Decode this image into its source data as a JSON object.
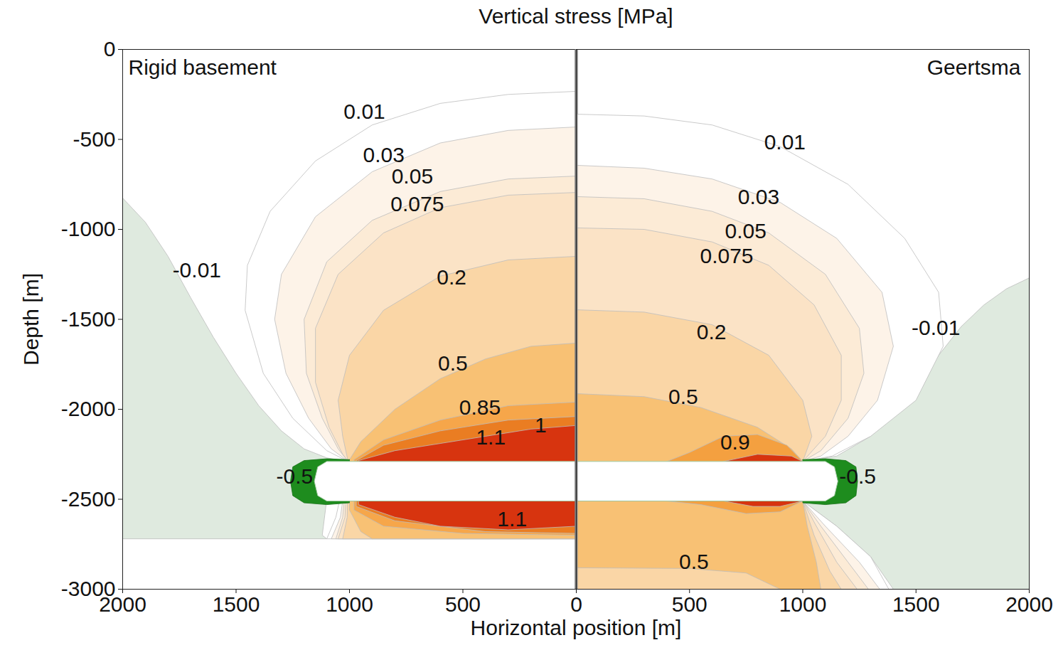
{
  "chart_data": [
    {
      "type": "contour",
      "title": "Vertical stress [MPa]",
      "xlabel": "Horizontal position [m]",
      "ylabel": "Depth [m]",
      "panel_title": "Rigid basement",
      "xlim": [
        2000,
        0
      ],
      "xticks": [
        2000,
        1500,
        1000,
        500,
        0
      ],
      "ylim": [
        -3000,
        0
      ],
      "yticks": [
        0,
        -500,
        -1000,
        -1500,
        -2000,
        -2500,
        -3000
      ],
      "regions": [
        {
          "level": -0.01,
          "color": "#dfeadf",
          "x": [
            2000,
            1900,
            1800,
            1700,
            1600,
            1500,
            1400,
            1300,
            1200,
            1100,
            1010,
            1100,
            1120,
            1100,
            2000
          ],
          "y": [
            -826,
            -960,
            -1150,
            -1380,
            -1600,
            -1800,
            -1980,
            -2120,
            -2220,
            -2270,
            -2290,
            -2500,
            -2700,
            -2720,
            -2720
          ]
        },
        {
          "level": 0.01,
          "color": "#ffffff",
          "x": [
            0,
            300,
            600,
            900,
            1150,
            1350,
            1450,
            1460,
            1380,
            1250,
            1100,
            1006,
            1060,
            1100,
            0
          ],
          "y": [
            -233,
            -250,
            -300,
            -420,
            -620,
            -900,
            -1200,
            -1450,
            -1800,
            -2050,
            -2230,
            -2290,
            -2600,
            -2720,
            -2720
          ]
        },
        {
          "level": 0.03,
          "color": "#fdf3e8",
          "x": [
            0,
            300,
            600,
            900,
            1150,
            1300,
            1330,
            1280,
            1180,
            1080,
            1006,
            1040,
            1080,
            0
          ],
          "y": [
            -431,
            -450,
            -520,
            -680,
            -930,
            -1250,
            -1500,
            -1800,
            -2050,
            -2220,
            -2290,
            -2600,
            -2720,
            -2720
          ]
        },
        {
          "level": 0.05,
          "color": "#fcebd6",
          "x": [
            0,
            300,
            600,
            900,
            1100,
            1200,
            1190,
            1120,
            1050,
            1006,
            1030,
            1060,
            0
          ],
          "y": [
            -704,
            -720,
            -790,
            -950,
            -1180,
            -1500,
            -1800,
            -2050,
            -2220,
            -2290,
            -2600,
            -2720,
            -2720
          ]
        },
        {
          "level": 0.075,
          "color": "#fbe3c6",
          "x": [
            0,
            300,
            600,
            850,
            1050,
            1150,
            1150,
            1090,
            1030,
            1006,
            1020,
            1050,
            0
          ],
          "y": [
            -795,
            -810,
            -880,
            -1020,
            -1250,
            -1550,
            -1850,
            -2100,
            -2250,
            -2290,
            -2600,
            -2720,
            -2720
          ]
        },
        {
          "level": 0.2,
          "color": "#fad6a6",
          "x": [
            0,
            300,
            600,
            850,
            1000,
            1050,
            1030,
            1006,
            1010,
            1030,
            0
          ],
          "y": [
            -1150,
            -1170,
            -1260,
            -1450,
            -1700,
            -1950,
            -2150,
            -2290,
            -2600,
            -2720,
            -2720
          ]
        },
        {
          "level": 0.5,
          "color": "#f8c174",
          "x": [
            0,
            200,
            400,
            600,
            800,
            950,
            1000,
            1000,
            950,
            900,
            0
          ],
          "y": [
            -1632,
            -1650,
            -1720,
            -1830,
            -2000,
            -2180,
            -2280,
            -2560,
            -2680,
            -2720,
            -2720
          ]
        },
        {
          "level": 0.85,
          "color": "#f6a64a",
          "x": [
            0,
            300,
            600,
            850,
            980,
            980,
            850,
            500,
            0
          ],
          "y": [
            -1960,
            -1980,
            -2060,
            -2170,
            -2280,
            -2560,
            -2650,
            -2690,
            -2700
          ]
        },
        {
          "level": 1,
          "color": "#ea7d22",
          "x": [
            0,
            300,
            600,
            850,
            970,
            970,
            800,
            400,
            0
          ],
          "y": [
            -2040,
            -2060,
            -2120,
            -2200,
            -2285,
            -2540,
            -2620,
            -2680,
            -2690
          ]
        },
        {
          "level": 1.1,
          "color": "#d7340f",
          "x": [
            0,
            200,
            400,
            600,
            800,
            960,
            960,
            800,
            600,
            300,
            0
          ],
          "y": [
            -2090,
            -2110,
            -2150,
            -2190,
            -2230,
            -2285,
            -2530,
            -2600,
            -2650,
            -2670,
            -2650
          ]
        },
        {
          "level": -0.5,
          "color": "#1e8c1e",
          "x": [
            1000,
            1100,
            1200,
            1250,
            1260,
            1250,
            1200,
            1100,
            1000
          ],
          "y": [
            -2280,
            -2275,
            -2285,
            -2320,
            -2400,
            -2480,
            -2520,
            -2530,
            -2520
          ]
        }
      ],
      "reservoir": {
        "x": [
          0,
          1100,
          1140,
          1155,
          1140,
          1100,
          0
        ],
        "y": [
          -2290,
          -2290,
          -2320,
          -2400,
          -2480,
          -2510,
          -2510
        ]
      },
      "labels": [
        {
          "value": 0.01,
          "x": 934,
          "y": -348
        },
        {
          "value": 0.03,
          "x": 849,
          "y": -589
        },
        {
          "value": 0.05,
          "x": 723,
          "y": -707
        },
        {
          "value": 0.075,
          "x": 701,
          "y": -862
        },
        {
          "value": -0.01,
          "x": 1673,
          "y": -1229
        },
        {
          "value": 0.2,
          "x": 550,
          "y": -1269
        },
        {
          "value": 0.5,
          "x": 544,
          "y": -1747
        },
        {
          "value": 0.85,
          "x": 425,
          "y": -1992
        },
        {
          "value": 1,
          "x": 157,
          "y": -2091
        },
        {
          "value": 1.1,
          "x": 377,
          "y": -2158
        },
        {
          "value": -0.5,
          "x": 1242,
          "y": -2375
        },
        {
          "value": 1.1,
          "x": 283,
          "y": -2613
        }
      ]
    },
    {
      "type": "contour",
      "panel_title": "Geertsma",
      "xlim": [
        0,
        2000
      ],
      "xticks": [
        500,
        1000,
        1500,
        2000
      ],
      "ylim": [
        -3000,
        0
      ],
      "yticks": [
        0,
        -500,
        -1000,
        -1500,
        -2000,
        -2500,
        -3000
      ],
      "tick_labels": "x",
      "regions": [
        {
          "level": -0.01,
          "color": "#dfeadf",
          "x": [
            2000,
            1900,
            1800,
            1700,
            1600,
            1500,
            1400,
            1300,
            1150,
            1000,
            1000,
            1150,
            1300,
            1400,
            2000
          ],
          "y": [
            -1270,
            -1330,
            -1420,
            -1540,
            -1700,
            -1880,
            -2030,
            -2150,
            -2260,
            -2290,
            -2510,
            -2650,
            -2820,
            -3000,
            -3000
          ]
        },
        {
          "level": 0.01,
          "color": "#ffffff",
          "x": [
            0,
            300,
            600,
            900,
            1200,
            1450,
            1600,
            1620,
            1500,
            1300,
            1130,
            1000,
            1000,
            1150,
            1300,
            1380,
            0
          ],
          "y": [
            -360,
            -370,
            -420,
            -540,
            -750,
            -1050,
            -1350,
            -1650,
            -1950,
            -2150,
            -2260,
            -2290,
            -2510,
            -2650,
            -2820,
            -3000,
            -3000
          ]
        },
        {
          "level": 0.03,
          "color": "#fdf3e8",
          "x": [
            0,
            300,
            600,
            900,
            1150,
            1350,
            1400,
            1330,
            1200,
            1080,
            1000,
            1000,
            1100,
            1250,
            1340,
            0
          ],
          "y": [
            -644,
            -660,
            -720,
            -850,
            -1050,
            -1350,
            -1650,
            -1950,
            -2150,
            -2260,
            -2290,
            -2510,
            -2650,
            -2850,
            -3000,
            -3000
          ]
        },
        {
          "level": 0.05,
          "color": "#fcebd6",
          "x": [
            0,
            300,
            600,
            850,
            1100,
            1250,
            1270,
            1200,
            1080,
            1000,
            1000,
            1080,
            1200,
            1290,
            0
          ],
          "y": [
            -818,
            -830,
            -900,
            -1020,
            -1250,
            -1550,
            -1800,
            -2050,
            -2230,
            -2290,
            -2510,
            -2650,
            -2850,
            -3000,
            -3000
          ]
        },
        {
          "level": 0.075,
          "color": "#fbe3c6",
          "x": [
            0,
            300,
            600,
            850,
            1050,
            1170,
            1170,
            1100,
            1000,
            1000,
            1060,
            1150,
            1240,
            0
          ],
          "y": [
            -992,
            -1000,
            -1070,
            -1200,
            -1420,
            -1700,
            -1950,
            -2150,
            -2290,
            -2510,
            -2650,
            -2850,
            -3000,
            -3000
          ]
        },
        {
          "level": 0.2,
          "color": "#fad6a6",
          "x": [
            0,
            300,
            600,
            850,
            1000,
            1040,
            1000,
            1000,
            1050,
            1120,
            1170,
            0
          ],
          "y": [
            -1447,
            -1460,
            -1530,
            -1700,
            -1950,
            -2150,
            -2290,
            -2510,
            -2700,
            -2900,
            -3000,
            -3000
          ]
        },
        {
          "level": 0.5,
          "color": "#f8c174",
          "x": [
            0,
            300,
            550,
            800,
            950,
            1000,
            1000,
            1020,
            1060,
            1080,
            900,
            750,
            500,
            0
          ],
          "y": [
            -1913,
            -1930,
            -1990,
            -2100,
            -2220,
            -2290,
            -2510,
            -2650,
            -2850,
            -3000,
            -3000,
            -2910,
            -2885,
            -2881
          ]
        },
        {
          "level": 0.9,
          "color": "#f4a040",
          "x": [
            400,
            500,
            650,
            800,
            930,
            1000,
            1000,
            900,
            750,
            550,
            400
          ],
          "y": [
            -2290,
            -2240,
            -2150,
            -2140,
            -2200,
            -2290,
            -2510,
            -2570,
            -2580,
            -2530,
            -2510
          ]
        },
        {
          "level": 1.1,
          "color": "#d7340f",
          "x": [
            650,
            800,
            950,
            1000,
            1000,
            900,
            780,
            650
          ],
          "y": [
            -2290,
            -2250,
            -2260,
            -2290,
            -2510,
            -2540,
            -2540,
            -2510
          ]
        },
        {
          "level": -0.5,
          "color": "#1e8c1e",
          "x": [
            1000,
            1100,
            1190,
            1235,
            1242,
            1235,
            1190,
            1100,
            1000
          ],
          "y": [
            -2280,
            -2275,
            -2285,
            -2320,
            -2400,
            -2480,
            -2520,
            -2530,
            -2520
          ]
        }
      ],
      "reservoir": {
        "x": [
          0,
          1100,
          1140,
          1155,
          1140,
          1100,
          0
        ],
        "y": [
          -2290,
          -2290,
          -2320,
          -2400,
          -2480,
          -2510,
          -2510
        ]
      },
      "labels": [
        {
          "value": 0.01,
          "x": 921,
          "y": -518
        },
        {
          "value": 0.03,
          "x": 805,
          "y": -822
        },
        {
          "value": 0.05,
          "x": 748,
          "y": -1012
        },
        {
          "value": 0.075,
          "x": 664,
          "y": -1150
        },
        {
          "value": 0.2,
          "x": 597,
          "y": -1573
        },
        {
          "value": -0.01,
          "x": 1588,
          "y": -1549
        },
        {
          "value": 0.5,
          "x": 472,
          "y": -1933
        },
        {
          "value": 0.9,
          "x": 701,
          "y": -2186
        },
        {
          "value": -0.5,
          "x": 1242,
          "y": -2375
        },
        {
          "value": 0.5,
          "x": 519,
          "y": -2850
        }
      ]
    }
  ]
}
